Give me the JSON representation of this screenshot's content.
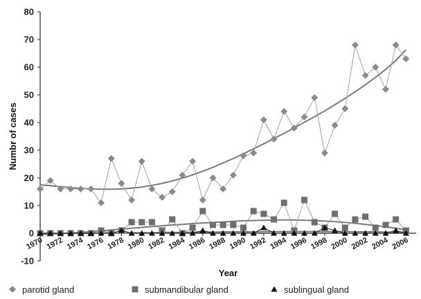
{
  "chart_data": {
    "type": "line",
    "xlabel": "Year",
    "ylabel": "Numbr of cases",
    "xlim": [
      1970,
      2007
    ],
    "ylim": [
      -10,
      80
    ],
    "y_ticks": [
      "-10",
      "0",
      "10",
      "20",
      "30",
      "40",
      "50",
      "60",
      "70",
      "80"
    ],
    "x_ticks": [
      "1970",
      "1972",
      "1974",
      "1976",
      "1978",
      "1980",
      "1982",
      "1984",
      "1986",
      "1988",
      "1990",
      "1992",
      "1994",
      "1996",
      "1998",
      "2000",
      "2002",
      "2004",
      "2006"
    ],
    "grid": false,
    "legend_position": "bottom",
    "x": [
      1970,
      1971,
      1972,
      1973,
      1974,
      1975,
      1976,
      1977,
      1978,
      1979,
      1980,
      1981,
      1982,
      1983,
      1984,
      1985,
      1986,
      1987,
      1988,
      1989,
      1990,
      1991,
      1992,
      1993,
      1994,
      1995,
      1996,
      1997,
      1998,
      1999,
      2000,
      2001,
      2002,
      2003,
      2004,
      2005,
      2006
    ],
    "series": [
      {
        "name": "parotid gland",
        "marker": "diamond",
        "color": "#8a8a8a",
        "values": [
          16,
          19,
          16,
          16,
          16,
          16,
          11,
          27,
          18,
          12,
          26,
          16,
          13,
          15,
          21,
          26,
          12,
          20,
          16,
          21,
          28,
          29,
          41,
          34,
          44,
          38,
          42,
          49,
          29,
          39,
          45,
          68,
          57,
          60,
          52,
          68,
          63
        ],
        "trend": [
          17.5,
          17.2,
          16.8,
          16.5,
          16.2,
          16,
          15.9,
          15.9,
          16,
          16.3,
          16.7,
          17.3,
          18,
          18.9,
          19.9,
          21.1,
          22.4,
          23.8,
          25.4,
          27,
          28.7,
          30.5,
          32.3,
          34.2,
          36.1,
          38.1,
          40.1,
          42.1,
          44.2,
          46.4,
          48.7,
          51.1,
          53.6,
          56.3,
          59.2,
          62.4,
          66.3
        ]
      },
      {
        "name": "submandibular gland",
        "marker": "square",
        "color": "#6e6e6e",
        "values": [
          0,
          0,
          0,
          0,
          0,
          0,
          1,
          0,
          1,
          4,
          4,
          4,
          1,
          5,
          0,
          2,
          8,
          3,
          3,
          3,
          2,
          8,
          7,
          5,
          11,
          1,
          12,
          4,
          2,
          7,
          2,
          5,
          6,
          2,
          3,
          5,
          1
        ],
        "trend": [
          -0.5,
          -0.3,
          -0.1,
          0.1,
          0.3,
          0.6,
          0.9,
          1.2,
          1.5,
          1.8,
          2.1,
          2.4,
          2.7,
          3,
          3.2,
          3.5,
          3.7,
          3.9,
          4.1,
          4.3,
          4.5,
          4.6,
          4.7,
          4.8,
          4.8,
          4.8,
          4.7,
          4.6,
          4.4,
          4.2,
          3.9,
          3.6,
          3.2,
          2.8,
          2.3,
          1.8,
          1.2
        ]
      },
      {
        "name": "sublingual gland",
        "marker": "triangle",
        "color": "#111111",
        "values": [
          0,
          0,
          0,
          0,
          0,
          0,
          0,
          0,
          1,
          0,
          0,
          0,
          0,
          0,
          0,
          0,
          1,
          0,
          0,
          0,
          0,
          0,
          2,
          0,
          0,
          0,
          0,
          0,
          2,
          1,
          0,
          0,
          0,
          0,
          0,
          1,
          0
        ],
        "trend": [
          0,
          0,
          0,
          0,
          0,
          0,
          0.1,
          0.1,
          0.1,
          0.2,
          0.2,
          0.2,
          0.3,
          0.3,
          0.3,
          0.4,
          0.4,
          0.4,
          0.5,
          0.5,
          0.5,
          0.5,
          0.6,
          0.6,
          0.6,
          0.6,
          0.6,
          0.6,
          0.6,
          0.6,
          0.6,
          0.5,
          0.5,
          0.5,
          0.4,
          0.4,
          0.3
        ]
      }
    ]
  }
}
